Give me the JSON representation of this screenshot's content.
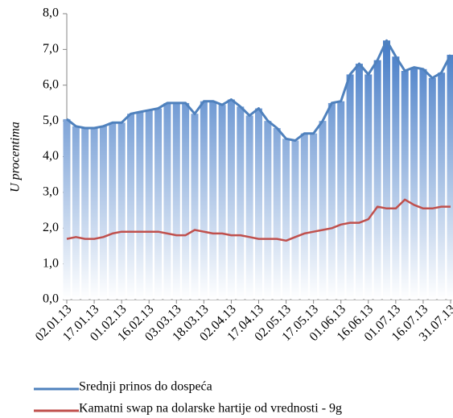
{
  "chart_data": {
    "type": "line",
    "y_label": "U procentima",
    "categories": [
      "02.01.13",
      null,
      null,
      "17.01.13",
      null,
      null,
      "01.02.13",
      null,
      null,
      "16.02.13",
      null,
      null,
      "03.03.13",
      null,
      null,
      "18.03.13",
      null,
      null,
      "02.04.13",
      null,
      null,
      "17.04.13",
      null,
      null,
      "02.05.13",
      null,
      null,
      "17.05.13",
      null,
      null,
      "01.06.13",
      null,
      null,
      "16.06.13",
      null,
      null,
      "01.07.13",
      null,
      null,
      "16.07.13",
      null,
      null,
      "31.07.13"
    ],
    "series": [
      {
        "name": "Srednji prinos do dospeća",
        "color": "#4f81bd",
        "values": [
          5.05,
          4.85,
          4.8,
          4.8,
          4.85,
          4.95,
          4.95,
          5.2,
          5.25,
          5.3,
          5.35,
          5.5,
          5.5,
          5.5,
          5.2,
          5.55,
          5.55,
          5.45,
          5.6,
          5.4,
          5.15,
          5.35,
          5.0,
          4.8,
          4.5,
          4.45,
          4.65,
          4.65,
          5.0,
          5.5,
          5.55,
          6.3,
          6.6,
          6.3,
          6.7,
          7.25,
          6.8,
          6.4,
          6.5,
          6.45,
          6.2,
          6.35,
          6.85
        ]
      },
      {
        "name": "Kamatni swap na dolarske hartije od vrednosti - 9g",
        "color": "#c0504d",
        "values": [
          1.7,
          1.75,
          1.7,
          1.7,
          1.75,
          1.85,
          1.9,
          1.9,
          1.9,
          1.9,
          1.9,
          1.85,
          1.8,
          1.8,
          1.95,
          1.9,
          1.85,
          1.85,
          1.8,
          1.8,
          1.75,
          1.7,
          1.7,
          1.7,
          1.65,
          1.75,
          1.85,
          1.9,
          1.95,
          2.0,
          2.1,
          2.15,
          2.15,
          2.25,
          2.6,
          2.55,
          2.55,
          2.8,
          2.65,
          2.55,
          2.55,
          2.6,
          2.6
        ]
      }
    ],
    "ylim": [
      0,
      8
    ],
    "yticks": [
      {
        "value": 0,
        "label": "0,0"
      },
      {
        "value": 1,
        "label": "1,0"
      },
      {
        "value": 2,
        "label": "2,0"
      },
      {
        "value": 3,
        "label": "3,0"
      },
      {
        "value": 4,
        "label": "4,0"
      },
      {
        "value": 5,
        "label": "5,0"
      },
      {
        "value": 6,
        "label": "6,0"
      },
      {
        "value": 7,
        "label": "7,0"
      },
      {
        "value": 8,
        "label": "8,0"
      }
    ],
    "grid": false
  }
}
